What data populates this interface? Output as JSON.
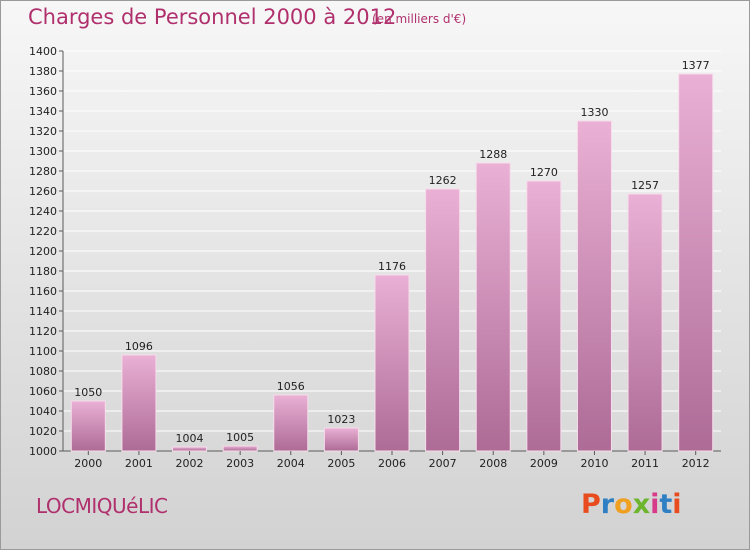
{
  "header": {
    "title": "Charges de Personnel 2000 à 2012",
    "unit": "(en milliers d'€)"
  },
  "footer": {
    "commune": "LOCMIQUéLIC",
    "logo_text": "Proxiti",
    "logo_colors": [
      "#e84c1e",
      "#2f7fc4",
      "#f0a020",
      "#6cb52d",
      "#d83a8a",
      "#2f7fc4",
      "#e84c1e"
    ]
  },
  "colors": {
    "bar_top": "#eab0d5",
    "bar_bottom": "#ad6b96",
    "bar_edge": "#f6dcea",
    "axis": "#5a5a5a",
    "grid": "#ffffff",
    "title": "#b0306d"
  },
  "chart_data": {
    "type": "bar",
    "categories": [
      "2000",
      "2001",
      "2002",
      "2003",
      "2004",
      "2005",
      "2006",
      "2007",
      "2008",
      "2009",
      "2010",
      "2011",
      "2012"
    ],
    "values": [
      1050,
      1096,
      1004,
      1005,
      1056,
      1023,
      1176,
      1262,
      1288,
      1270,
      1330,
      1257,
      1377
    ],
    "title": "Charges de Personnel 2000 à 2012",
    "subtitle": "(en milliers d'€)",
    "ylim": [
      1000,
      1400
    ],
    "yticks": [
      1000,
      1020,
      1040,
      1060,
      1080,
      1100,
      1120,
      1140,
      1160,
      1180,
      1200,
      1220,
      1240,
      1260,
      1280,
      1300,
      1320,
      1340,
      1360,
      1380,
      1400
    ],
    "grid": true,
    "data_labels": true
  }
}
